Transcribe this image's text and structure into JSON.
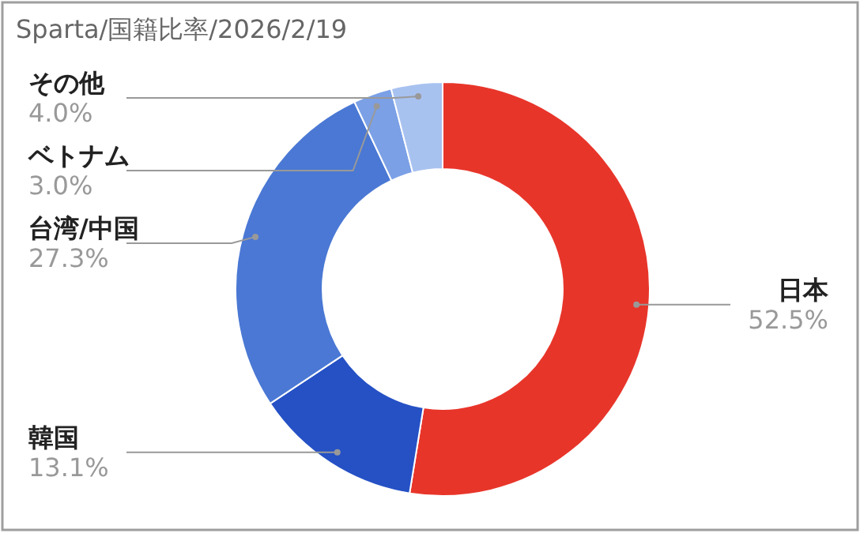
{
  "chart_data": {
    "type": "donut",
    "title": "Sparta/国籍比率/2026/2/19",
    "categories": [
      "日本",
      "韓国",
      "台湾/中国",
      "ベトナム",
      "その他"
    ],
    "values": [
      52.5,
      13.1,
      27.3,
      3.0,
      4.0
    ],
    "colors": [
      "#e8352a",
      "#2551c5",
      "#4a78d4",
      "#7ba0e6",
      "#a8c2f0"
    ],
    "value_labels": [
      "52.5%",
      "13.1%",
      "27.3%",
      "3.0%",
      "4.0%"
    ]
  }
}
